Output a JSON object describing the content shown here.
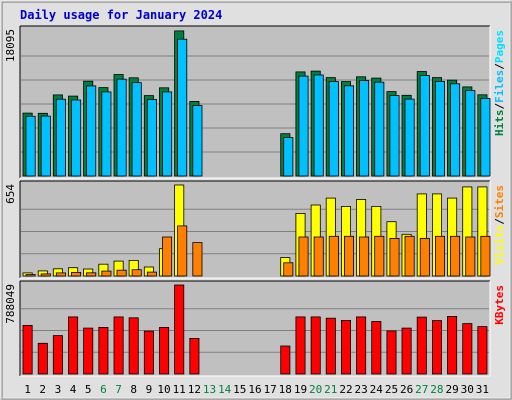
{
  "chart_data": {
    "type": "bar",
    "title": "Daily usage for January 2024",
    "categories": [
      "1",
      "2",
      "3",
      "4",
      "5",
      "6",
      "7",
      "8",
      "9",
      "10",
      "11",
      "12",
      "13",
      "14",
      "15",
      "16",
      "17",
      "18",
      "19",
      "20",
      "21",
      "22",
      "23",
      "24",
      "25",
      "26",
      "27",
      "28",
      "29",
      "30",
      "31"
    ],
    "weekend_days": [
      "6",
      "7",
      "13",
      "14",
      "20",
      "21",
      "27",
      "28"
    ],
    "colors": {
      "hits": "#008040",
      "files": "#00c0ff",
      "pages": "#00e0ff",
      "visits": "#ffff00",
      "sites": "#ff8000",
      "kbytes": "#ff0000",
      "weekday_label": "#000000",
      "weekend_label": "#008040",
      "title": "#0000cc",
      "panel_bg": "#c0c0c0"
    },
    "panels": [
      {
        "id": "hits-files-pages",
        "max_label": "18095",
        "ylim": [
          0,
          18095
        ],
        "legend": [
          {
            "text": "Pages",
            "color": "#00e0ff"
          },
          {
            "text": "/",
            "color": "#000000"
          },
          {
            "text": "Files",
            "color": "#00c0ff"
          },
          {
            "text": "/",
            "color": "#000000"
          },
          {
            "text": "Hits",
            "color": "#008040"
          }
        ],
        "series": [
          {
            "name": "Hits",
            "color": "#008040",
            "values": [
              7790,
              7770,
              10050,
              9900,
              11750,
              10950,
              12580,
              12170,
              9960,
              10930,
              17980,
              9240,
              0,
              0,
              0,
              0,
              0,
              5240,
              12900,
              13000,
              12200,
              11700,
              12300,
              12130,
              10460,
              10000,
              12950,
              12190,
              11890,
              11040,
              10060
            ]
          },
          {
            "name": "Files",
            "color": "#00c0ff",
            "values": [
              7400,
              7420,
              9520,
              9420,
              11170,
              10420,
              12000,
              11580,
              9480,
              10420,
              16950,
              8720,
              0,
              0,
              0,
              0,
              0,
              4760,
              12380,
              12520,
              11700,
              11180,
              11820,
              11620,
              9970,
              9530,
              12450,
              11710,
              11430,
              10580,
              9610
            ]
          },
          {
            "name": "Pages",
            "color": "#00e0ff",
            "values": [
              0,
              0,
              0,
              0,
              0,
              0,
              0,
              0,
              0,
              0,
              0,
              0,
              0,
              0,
              0,
              0,
              0,
              0,
              0,
              0,
              0,
              0,
              0,
              0,
              0,
              0,
              0,
              0,
              0,
              0,
              0
            ]
          }
        ]
      },
      {
        "id": "visits-sites",
        "max_label": "654",
        "ylim": [
          0,
          654
        ],
        "legend": [
          {
            "text": "Sites",
            "color": "#ff8000"
          },
          {
            "text": "/",
            "color": "#000000"
          },
          {
            "text": "Visits",
            "color": "#ffff00"
          }
        ],
        "series": [
          {
            "name": "Visits",
            "color": "#ffff00",
            "values": [
              22,
              37,
              52,
              60,
              50,
              85,
              107,
              112,
              65,
              196,
              654,
              0,
              0,
              0,
              0,
              0,
              0,
              132,
              450,
              510,
              560,
              500,
              550,
              500,
              390,
              300,
              590,
              590,
              560,
              640,
              640
            ]
          },
          {
            "name": "Sites",
            "color": "#ff8000",
            "values": [
              10,
              15,
              22,
              26,
              23,
              35,
              42,
              45,
              28,
              280,
              360,
              240,
              0,
              0,
              0,
              0,
              0,
              95,
              280,
              280,
              285,
              285,
              280,
              285,
              270,
              285,
              270,
              285,
              285,
              280,
              285
            ]
          }
        ]
      },
      {
        "id": "kbytes",
        "max_label": "788049",
        "ylim": [
          0,
          788049
        ],
        "legend": [
          {
            "text": "KBytes",
            "color": "#ff0000"
          }
        ],
        "series": [
          {
            "name": "KBytes",
            "color": "#ff0000",
            "values": [
              430000,
              272000,
              340000,
              506000,
              406000,
              413000,
              506000,
              498000,
              380000,
              413000,
              788049,
              315000,
              0,
              0,
              0,
              0,
              0,
              248000,
              506000,
              506000,
              494000,
              475000,
              506000,
              465000,
              382000,
              406000,
              504000,
              473000,
              510000,
              446000,
              420000
            ]
          }
        ]
      }
    ]
  }
}
